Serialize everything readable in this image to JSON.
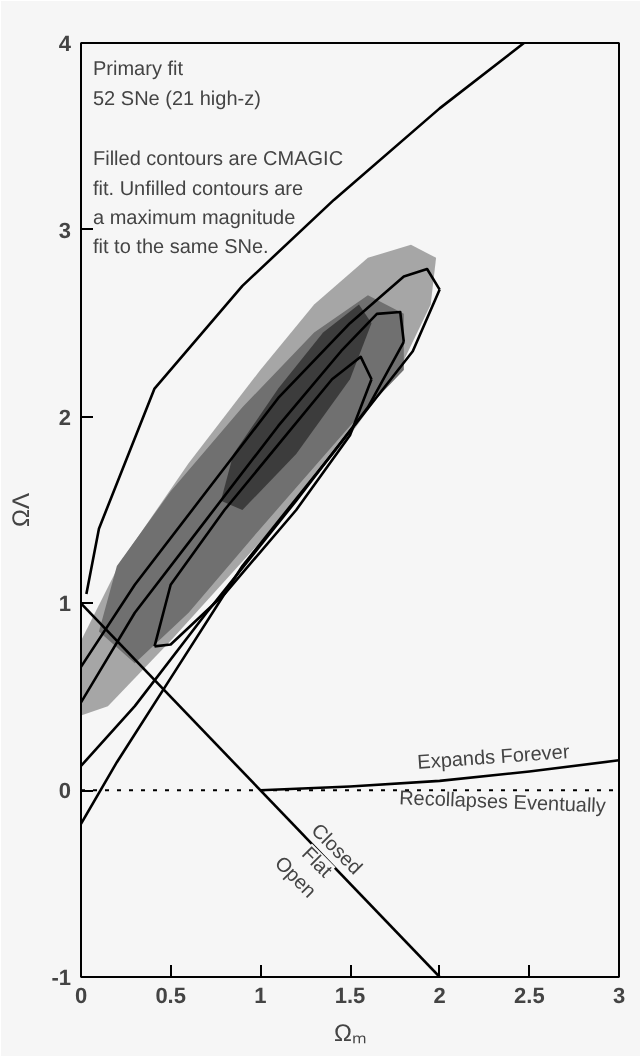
{
  "chart_data": {
    "type": "line",
    "xlabel": "Ωₘ",
    "ylabel": "ΩΛ",
    "xlim": [
      0,
      3
    ],
    "ylim": [
      -1,
      4
    ],
    "xticks": [
      0,
      0.5,
      1,
      1.5,
      2,
      2.5,
      3
    ],
    "yticks": [
      -1,
      0,
      1,
      2,
      3,
      4
    ],
    "grid": false,
    "series": [
      {
        "type": "area",
        "color": "#a6a6a6",
        "x": [
          0,
          0,
          0.22,
          0.6,
          1.0,
          1.3,
          1.6,
          1.84,
          1.98,
          1.95,
          1.8,
          1.5,
          1.0,
          0.5,
          0.15,
          0
        ],
        "values": [
          0.4,
          0.8,
          1.22,
          1.75,
          2.25,
          2.6,
          2.85,
          2.92,
          2.85,
          2.6,
          2.3,
          1.9,
          1.33,
          0.8,
          0.45,
          0.4
        ]
      },
      {
        "type": "area",
        "color": "#707070",
        "x": [
          0.3,
          0.1,
          0.2,
          0.5,
          0.9,
          1.3,
          1.6,
          1.8,
          1.8,
          1.5,
          1.0,
          0.6,
          0.3
        ],
        "values": [
          0.68,
          0.85,
          1.2,
          1.6,
          2.05,
          2.45,
          2.65,
          2.55,
          2.25,
          1.95,
          1.4,
          0.95,
          0.68
        ]
      },
      {
        "type": "area",
        "color": "#3c3c3c",
        "x": [
          0.78,
          0.85,
          1.1,
          1.35,
          1.55,
          1.62,
          1.5,
          1.2,
          0.9,
          0.78
        ],
        "values": [
          1.55,
          1.8,
          2.15,
          2.45,
          2.6,
          2.5,
          2.2,
          1.8,
          1.5,
          1.55
        ]
      },
      {
        "color": "#000000",
        "x": [
          0.41,
          0.5,
          0.8,
          1.1,
          1.4,
          1.56,
          1.62
        ],
        "values": [
          0.77,
          1.1,
          1.5,
          1.85,
          2.2,
          2.32,
          2.2
        ]
      },
      {
        "color": "#000000",
        "x": [
          0.41,
          0.5,
          0.8,
          1.2,
          1.5,
          1.62
        ],
        "values": [
          0.77,
          0.78,
          1.05,
          1.5,
          1.9,
          2.2
        ]
      },
      {
        "color": "#000000",
        "x": [
          0,
          0.3,
          0.7,
          1.1,
          1.45,
          1.65,
          1.78,
          1.8
        ],
        "values": [
          0.47,
          0.95,
          1.45,
          1.95,
          2.35,
          2.55,
          2.56,
          2.4
        ]
      },
      {
        "color": "#000000",
        "x": [
          0,
          0.3,
          0.7,
          1.2,
          1.6,
          1.8
        ],
        "values": [
          0.13,
          0.45,
          0.95,
          1.55,
          2.05,
          2.4
        ]
      },
      {
        "color": "#000000",
        "x": [
          0,
          0.3,
          0.7,
          1.1,
          1.5,
          1.8,
          1.93,
          2.0
        ],
        "values": [
          0.66,
          1.1,
          1.6,
          2.1,
          2.5,
          2.75,
          2.79,
          2.68
        ]
      },
      {
        "color": "#000000",
        "x": [
          0,
          0.2,
          0.5,
          0.9,
          1.4,
          1.85,
          2.0
        ],
        "values": [
          -0.18,
          0.15,
          0.6,
          1.2,
          1.8,
          2.35,
          2.68
        ]
      },
      {
        "color": "#000000",
        "x": [
          0.03,
          0.1,
          0.41,
          0.9,
          1.41,
          2.0,
          2.47
        ],
        "values": [
          1.05,
          1.4,
          2.15,
          2.7,
          3.16,
          3.65,
          4.0
        ]
      },
      {
        "color": "#000000",
        "x": [
          0,
          2
        ],
        "values": [
          1,
          -1
        ]
      },
      {
        "color": "#000000",
        "x": [
          1,
          1.5,
          2,
          2.5,
          3
        ],
        "values": [
          0,
          0.02,
          0.05,
          0.1,
          0.16
        ]
      }
    ],
    "ref_lines": [
      {
        "axis": "y",
        "value": 0,
        "line_style": "dotted"
      }
    ],
    "annotations": [
      "Primary fit",
      "52 SNe (21 high-z)",
      "Filled contours are CMAGIC",
      "fit.  Unfilled contours are",
      "a maximum magnitude",
      "fit to the same SNe.",
      "Expands Forever",
      "Recollapses Eventually",
      "Closed",
      "Flat",
      "Open"
    ]
  }
}
